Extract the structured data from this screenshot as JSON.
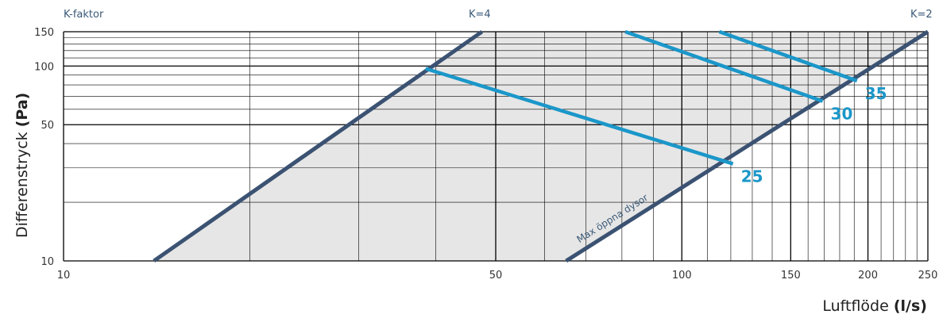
{
  "chart_data": {
    "type": "line",
    "title": "",
    "xlabel": "Luftflöde",
    "xlabel_unit": "(l/s)",
    "ylabel": "Differenstryck",
    "ylabel_unit": "(Pa)",
    "x_scale": "log",
    "y_scale": "log",
    "xlim": [
      10,
      250
    ],
    "ylim": [
      10,
      150
    ],
    "x_ticks": [
      10,
      50,
      100,
      150,
      200,
      250
    ],
    "y_ticks": [
      10,
      50,
      100,
      150
    ],
    "x_ticklabels": [
      "10",
      "50",
      "100",
      "150",
      "200",
      "250"
    ],
    "y_ticklabels": [
      "10",
      "50",
      "100",
      "150"
    ],
    "grid": true,
    "shaded_region": {
      "description": "operating area between boundary lines",
      "fill": "#e6e6e6"
    },
    "top_labels": {
      "left": "K-faktor",
      "mid": "K=4",
      "right": "K=2"
    },
    "boundaries": [
      {
        "name": "",
        "x": [
          14,
          47.5
        ],
        "y": [
          10,
          150
        ],
        "color": "#3b5272"
      },
      {
        "name": "Max öppna dysor",
        "x": [
          65,
          250
        ],
        "y": [
          10,
          150
        ],
        "color": "#3b5272"
      }
    ],
    "series": [
      {
        "name": "25",
        "x": [
          38.5,
          121
        ],
        "y": [
          97,
          31.5
        ],
        "color": "#1b97c9"
      },
      {
        "name": "30",
        "x": [
          81,
          169
        ],
        "y": [
          150,
          66
        ],
        "color": "#1b97c9"
      },
      {
        "name": "35",
        "x": [
          115,
          192
        ],
        "y": [
          150,
          84
        ],
        "color": "#1b97c9"
      }
    ]
  }
}
